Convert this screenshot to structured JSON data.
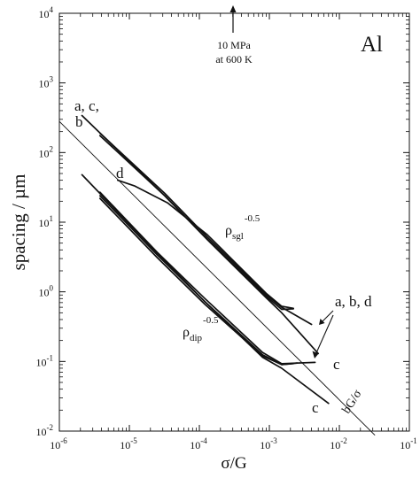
{
  "chart_data": {
    "type": "line",
    "xscale": "log",
    "yscale": "log",
    "xlim": [
      1e-06,
      0.1
    ],
    "ylim": [
      0.01,
      10000
    ],
    "xlabel": "σ/G",
    "ylabel": "spacing / µm",
    "material": "Al",
    "xticks": [
      {
        "value": 1e-06,
        "base": "10",
        "exp": "-6"
      },
      {
        "value": 1e-05,
        "base": "10",
        "exp": "-5"
      },
      {
        "value": 0.0001,
        "base": "10",
        "exp": "-4"
      },
      {
        "value": 0.001,
        "base": "10",
        "exp": "-3"
      },
      {
        "value": 0.01,
        "base": "10",
        "exp": "-2"
      },
      {
        "value": 0.1,
        "base": "10",
        "exp": "-1"
      }
    ],
    "yticks": [
      {
        "value": 0.01,
        "base": "10",
        "exp": "-2"
      },
      {
        "value": 0.1,
        "base": "10",
        "exp": "-1"
      },
      {
        "value": 1,
        "base": "10",
        "exp": "0"
      },
      {
        "value": 10,
        "base": "10",
        "exp": "1"
      },
      {
        "value": 100,
        "base": "10",
        "exp": "2"
      },
      {
        "value": 1000,
        "base": "10",
        "exp": "3"
      },
      {
        "value": 10000,
        "base": "10",
        "exp": "4"
      }
    ],
    "grid": false,
    "series": [
      {
        "name": "bG/σ",
        "style": "thin",
        "x": [
          1e-06,
          0.032
        ],
        "y": [
          280,
          0.0088
        ]
      },
      {
        "style": "thick",
        "x": [
          3.8e-06,
          3.2e-05,
          0.00013,
          0.0009,
          0.0015,
          0.004
        ],
        "y": [
          190,
          26,
          6.1,
          0.91,
          0.6,
          0.34
        ]
      },
      {
        "style": "thick",
        "x": [
          3.8e-06,
          3.2e-05,
          0.00013,
          0.0009,
          0.0015,
          0.0022
        ],
        "y": [
          175,
          24,
          5.7,
          0.86,
          0.56,
          0.57
        ]
      },
      {
        "style": "thick",
        "x": [
          2.1e-06,
          3.2e-05,
          0.00013,
          0.0009,
          0.0015,
          0.005
        ],
        "y": [
          340,
          24,
          5.6,
          0.82,
          0.5,
          0.13
        ]
      },
      {
        "style": "thick",
        "x": [
          6.8e-06,
          1.2e-05,
          3.5e-05,
          0.00013,
          0.0009,
          0.0015,
          0.0022
        ],
        "y": [
          40,
          33,
          19,
          6.6,
          0.95,
          0.62,
          0.58
        ]
      },
      {
        "style": "thick",
        "x": [
          3.8e-06,
          2.5e-05,
          0.00012,
          0.0008,
          0.0015,
          0.0045
        ],
        "y": [
          27,
          3.7,
          0.8,
          0.135,
          0.093,
          0.097
        ]
      },
      {
        "style": "thick",
        "x": [
          3.8e-06,
          2.5e-05,
          0.00012,
          0.0008,
          0.0015,
          0.0025
        ],
        "y": [
          24,
          3.4,
          0.72,
          0.125,
          0.09,
          0.095
        ]
      },
      {
        "style": "thick",
        "x": [
          2.1e-06,
          2.5e-05,
          0.00012,
          0.0008,
          0.0015,
          0.007
        ],
        "y": [
          48,
          3.6,
          0.72,
          0.115,
          0.08,
          0.025
        ]
      },
      {
        "style": "thick",
        "x": [
          3.8e-06,
          2.5e-05,
          0.00012,
          0.0008,
          0.0015,
          0.0022
        ],
        "y": [
          22,
          3.1,
          0.66,
          0.12,
          0.09,
          0.093
        ]
      }
    ],
    "annotations": {
      "stress_note_line1": "10 MPa",
      "stress_note_line2": "at 600 K",
      "label_ac": "a, c,",
      "label_b": "b",
      "label_d": "d",
      "label_abd": "a, b, d",
      "label_c_upper": "c",
      "label_c_lower": "c",
      "rho_sgl_base": "ρ",
      "rho_sgl_sub": "sgl",
      "rho_sgl_exp": "-0.5",
      "rho_dip_base": "ρ",
      "rho_dip_sub": "dip",
      "rho_dip_exp": "-0.5",
      "bg_line_label": "bG/σ"
    }
  }
}
